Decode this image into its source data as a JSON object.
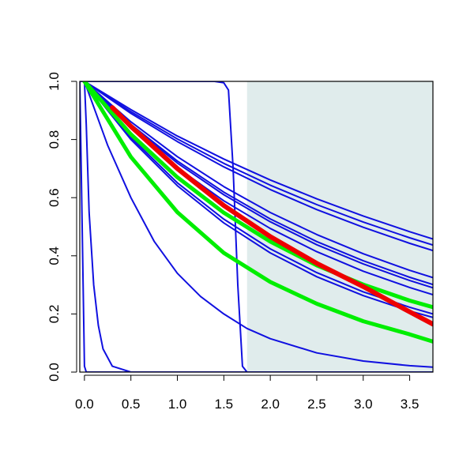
{
  "chart_data": {
    "type": "line",
    "title": "",
    "xlabel": "",
    "ylabel": "",
    "xlim": [
      -0.05,
      3.75
    ],
    "ylim": [
      0.0,
      1.0
    ],
    "x_ticks": [
      "0.0",
      "0.5",
      "1.0",
      "1.5",
      "2.0",
      "2.5",
      "3.0",
      "3.5"
    ],
    "y_ticks": [
      "0.0",
      "0.2",
      "0.4",
      "0.6",
      "0.8",
      "1.0"
    ],
    "grid": false,
    "legend": "none",
    "shaded_region": {
      "x_from": 1.75,
      "x_to": 3.75,
      "color": "#e0ecec"
    },
    "colors": {
      "blue": "#1010e0",
      "green": "#00ee00",
      "red": "#ee0000"
    },
    "series": [
      {
        "color": "blue",
        "width": 2,
        "points": [
          [
            -0.05,
            1.0
          ],
          [
            0.0,
            0.02
          ],
          [
            0.02,
            0.0
          ],
          [
            3.75,
            0.0
          ]
        ]
      },
      {
        "color": "blue",
        "width": 2,
        "points": [
          [
            0.0,
            1.0
          ],
          [
            0.02,
            0.85
          ],
          [
            0.05,
            0.55
          ],
          [
            0.1,
            0.3
          ],
          [
            0.15,
            0.16
          ],
          [
            0.2,
            0.08
          ],
          [
            0.3,
            0.02
          ],
          [
            0.5,
            0.0
          ],
          [
            3.75,
            0.0
          ]
        ]
      },
      {
        "color": "blue",
        "width": 2,
        "points": [
          [
            0.0,
            1.0
          ],
          [
            0.25,
            0.78
          ],
          [
            0.5,
            0.6
          ],
          [
            0.75,
            0.45
          ],
          [
            1.0,
            0.34
          ],
          [
            1.25,
            0.26
          ],
          [
            1.5,
            0.2
          ],
          [
            1.75,
            0.15
          ],
          [
            2.0,
            0.115
          ],
          [
            2.5,
            0.066
          ],
          [
            3.0,
            0.038
          ],
          [
            3.5,
            0.022
          ],
          [
            3.75,
            0.017
          ]
        ]
      },
      {
        "color": "blue",
        "width": 2,
        "points": [
          [
            -0.05,
            1.0
          ],
          [
            1.4,
            1.0
          ],
          [
            1.5,
            0.995
          ],
          [
            1.55,
            0.97
          ],
          [
            1.6,
            0.7
          ],
          [
            1.65,
            0.3
          ],
          [
            1.7,
            0.02
          ],
          [
            1.75,
            0.0
          ],
          [
            3.75,
            0.0
          ]
        ]
      },
      {
        "color": "blue",
        "width": 2,
        "points": [
          [
            0.0,
            1.0
          ],
          [
            0.5,
            0.903
          ],
          [
            1.0,
            0.812
          ],
          [
            1.5,
            0.733
          ],
          [
            2.0,
            0.661
          ],
          [
            2.5,
            0.596
          ],
          [
            3.0,
            0.537
          ],
          [
            3.5,
            0.483
          ],
          [
            3.75,
            0.458
          ]
        ]
      },
      {
        "color": "blue",
        "width": 2,
        "points": [
          [
            0.0,
            1.0
          ],
          [
            0.5,
            0.896
          ],
          [
            1.0,
            0.802
          ],
          [
            1.5,
            0.718
          ],
          [
            2.0,
            0.643
          ],
          [
            2.5,
            0.576
          ],
          [
            3.0,
            0.516
          ],
          [
            3.5,
            0.462
          ],
          [
            3.75,
            0.437
          ]
        ]
      },
      {
        "color": "blue",
        "width": 2,
        "points": [
          [
            0.0,
            1.0
          ],
          [
            0.5,
            0.89
          ],
          [
            1.0,
            0.793
          ],
          [
            1.5,
            0.706
          ],
          [
            2.0,
            0.628
          ],
          [
            2.5,
            0.559
          ],
          [
            3.0,
            0.498
          ],
          [
            3.5,
            0.443
          ],
          [
            3.75,
            0.418
          ]
        ]
      },
      {
        "color": "blue",
        "width": 2,
        "points": [
          [
            0.0,
            1.0
          ],
          [
            0.5,
            0.861
          ],
          [
            1.0,
            0.741
          ],
          [
            1.5,
            0.638
          ],
          [
            2.0,
            0.549
          ],
          [
            2.5,
            0.473
          ],
          [
            3.0,
            0.407
          ],
          [
            3.5,
            0.35
          ],
          [
            3.75,
            0.325
          ]
        ]
      },
      {
        "color": "blue",
        "width": 2,
        "points": [
          [
            0.0,
            1.0
          ],
          [
            0.5,
            0.852
          ],
          [
            1.0,
            0.726
          ],
          [
            1.5,
            0.619
          ],
          [
            2.0,
            0.527
          ],
          [
            2.5,
            0.449
          ],
          [
            3.0,
            0.383
          ],
          [
            3.5,
            0.326
          ],
          [
            3.75,
            0.301
          ]
        ]
      },
      {
        "color": "blue",
        "width": 2,
        "points": [
          [
            0.0,
            1.0
          ],
          [
            0.5,
            0.848
          ],
          [
            1.0,
            0.719
          ],
          [
            1.5,
            0.61
          ],
          [
            2.0,
            0.517
          ],
          [
            2.5,
            0.438
          ],
          [
            3.0,
            0.372
          ],
          [
            3.5,
            0.315
          ],
          [
            3.75,
            0.29
          ]
        ]
      },
      {
        "color": "blue",
        "width": 2,
        "points": [
          [
            0.0,
            1.0
          ],
          [
            0.5,
            0.838
          ],
          [
            1.0,
            0.703
          ],
          [
            1.5,
            0.589
          ],
          [
            2.0,
            0.494
          ],
          [
            2.5,
            0.414
          ],
          [
            3.0,
            0.347
          ],
          [
            3.5,
            0.291
          ],
          [
            3.75,
            0.266
          ]
        ]
      },
      {
        "color": "blue",
        "width": 2,
        "points": [
          [
            0.0,
            1.0
          ],
          [
            0.5,
            0.807
          ],
          [
            1.0,
            0.651
          ],
          [
            1.5,
            0.526
          ],
          [
            2.0,
            0.424
          ],
          [
            2.5,
            0.342
          ],
          [
            3.0,
            0.276
          ],
          [
            3.5,
            0.223
          ],
          [
            3.75,
            0.2
          ]
        ]
      },
      {
        "color": "blue",
        "width": 2,
        "points": [
          [
            0.0,
            1.0
          ],
          [
            0.5,
            0.8
          ],
          [
            1.0,
            0.641
          ],
          [
            1.5,
            0.513
          ],
          [
            2.0,
            0.41
          ],
          [
            2.5,
            0.328
          ],
          [
            3.0,
            0.263
          ],
          [
            3.5,
            0.21
          ],
          [
            3.75,
            0.188
          ]
        ]
      },
      {
        "color": "green",
        "width": 5,
        "points": [
          [
            0.0,
            1.0
          ],
          [
            0.5,
            0.818
          ],
          [
            1.0,
            0.67
          ],
          [
            1.5,
            0.548
          ],
          [
            2.0,
            0.449
          ],
          [
            2.5,
            0.367
          ],
          [
            3.0,
            0.301
          ],
          [
            3.5,
            0.246
          ],
          [
            3.75,
            0.223
          ]
        ]
      },
      {
        "color": "green",
        "width": 5,
        "points": [
          [
            0.0,
            1.0
          ],
          [
            0.5,
            0.74
          ],
          [
            1.0,
            0.55
          ],
          [
            1.5,
            0.41
          ],
          [
            2.0,
            0.31
          ],
          [
            2.5,
            0.235
          ],
          [
            3.0,
            0.175
          ],
          [
            3.5,
            0.13
          ],
          [
            3.75,
            0.105
          ]
        ]
      },
      {
        "color": "red",
        "width": 6,
        "points": [
          [
            0.3,
            0.91
          ],
          [
            0.5,
            0.845
          ],
          [
            1.0,
            0.7
          ],
          [
            1.5,
            0.573
          ],
          [
            2.0,
            0.466
          ],
          [
            2.5,
            0.374
          ],
          [
            3.0,
            0.294
          ],
          [
            3.5,
            0.207
          ],
          [
            3.75,
            0.165
          ]
        ]
      }
    ]
  }
}
